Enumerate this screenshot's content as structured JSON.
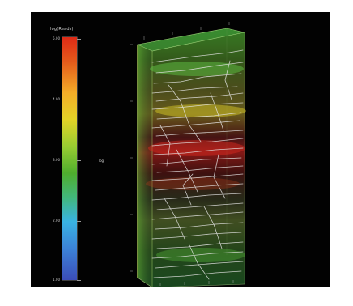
{
  "colorbar": {
    "title": "log(Reads)",
    "ticks": [
      "5.00",
      "4.00",
      "3.00",
      "2.00",
      "1.00"
    ],
    "gradient": [
      "#dd2a16",
      "#f4ad28",
      "#e2d327",
      "#98cc32",
      "#4fae2e",
      "#39b3e3",
      "#3b4db8"
    ]
  },
  "mid_label": "log",
  "colors": {
    "background": "#020202",
    "fibers": "#e6e6e6",
    "volume_edge": "#b8e07a"
  }
}
